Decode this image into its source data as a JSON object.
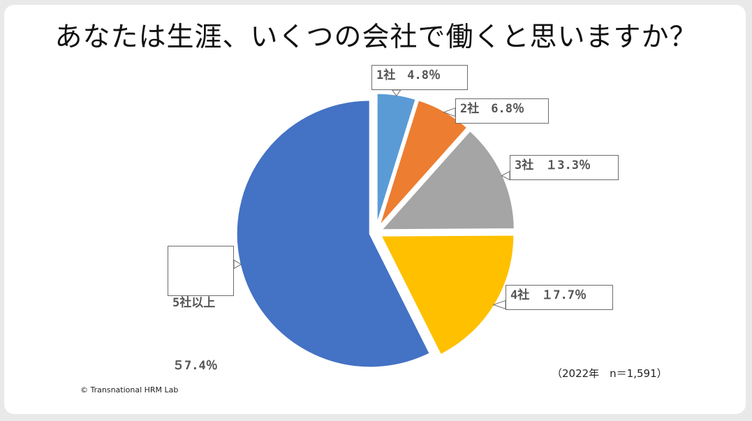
{
  "chart_data": {
    "type": "pie",
    "title": "あなたは生涯、いくつの会社で働くと思いますか？",
    "categories": [
      "1社",
      "2社",
      "3社",
      "4社",
      "5社以上"
    ],
    "values": [
      4.8,
      6.8,
      13.3,
      17.7,
      57.4
    ],
    "unit": "%",
    "colors": [
      "#5b9bd5",
      "#ed7d31",
      "#a5a5a5",
      "#ffc000",
      "#4472c4"
    ],
    "exploded": [
      true,
      true,
      true,
      true,
      true
    ],
    "data_labels": [
      "1社　4.8％",
      "2社　6.8％",
      "3社　１3.3％",
      "4社　１7.7％",
      [
        "5社以上",
        "５7.4％"
      ]
    ]
  },
  "note": "（2022年　n＝1,591）",
  "copyright": "© Transnational HRM Lab"
}
